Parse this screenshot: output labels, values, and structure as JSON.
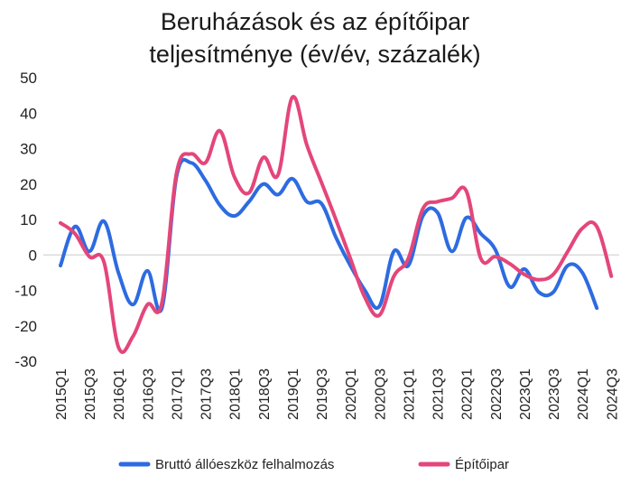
{
  "chart_data": {
    "type": "line",
    "title_lines": [
      "Beruházások és az építőipar",
      "teljesítménye (év/év, százalék)"
    ],
    "xlabel": "",
    "ylabel": "",
    "ylim": [
      -30,
      50
    ],
    "yticks": [
      50,
      40,
      30,
      20,
      10,
      0,
      -10,
      -20,
      -30
    ],
    "categories": [
      "2015Q1",
      "2015Q2",
      "2015Q3",
      "2015Q4",
      "2016Q1",
      "2016Q2",
      "2016Q3",
      "2016Q4",
      "2017Q1",
      "2017Q2",
      "2017Q3",
      "2017Q4",
      "2018Q1",
      "2018Q2",
      "2018Q3",
      "2018Q4",
      "2019Q1",
      "2019Q2",
      "2019Q3",
      "2019Q4",
      "2020Q1",
      "2020Q2",
      "2020Q3",
      "2020Q4",
      "2021Q1",
      "2021Q2",
      "2021Q3",
      "2021Q4",
      "2022Q1",
      "2022Q2",
      "2022Q3",
      "2022Q4",
      "2023Q1",
      "2023Q2",
      "2023Q3",
      "2023Q4",
      "2024Q1",
      "2024Q2",
      "2024Q3"
    ],
    "tick_labels": [
      "2015Q1",
      "2015Q3",
      "2016Q1",
      "2016Q3",
      "2017Q1",
      "2017Q3",
      "2018Q1",
      "2018Q3",
      "2019Q1",
      "2019Q3",
      "2020Q1",
      "2020Q3",
      "2021Q1",
      "2021Q3",
      "2022Q1",
      "2022Q3",
      "2023Q1",
      "2023Q3",
      "2024Q1",
      "2024Q3"
    ],
    "grid": false,
    "zero_line": true,
    "legend_position": "bottom",
    "series": [
      {
        "name": "Bruttó állóeszköz felhalmozás",
        "color": "#2d6be0",
        "values": [
          -3,
          8,
          1,
          9.5,
          -5,
          -14,
          -4.5,
          -15,
          22,
          26,
          21,
          14,
          11,
          15,
          20,
          17,
          21.5,
          15,
          14.5,
          5,
          -3,
          -10,
          -14.5,
          1,
          -3,
          11,
          12,
          1,
          10.5,
          6,
          1.5,
          -9,
          -4,
          -10.5,
          -10.5,
          -3,
          -5,
          -15,
          null
        ]
      },
      {
        "name": "Építőipar",
        "color": "#e4467a",
        "values": [
          9,
          6,
          -0.5,
          -2,
          -26,
          -23,
          -14,
          -13.5,
          23,
          28.5,
          26,
          35,
          22,
          17.5,
          27.5,
          22.5,
          44.5,
          31,
          20.5,
          10,
          -1,
          -12,
          -17,
          -6,
          -1,
          13,
          15,
          16,
          18,
          -1,
          -0.5,
          -2.5,
          -5.5,
          -7,
          -5.5,
          1,
          7.5,
          8,
          -6
        ]
      }
    ]
  }
}
